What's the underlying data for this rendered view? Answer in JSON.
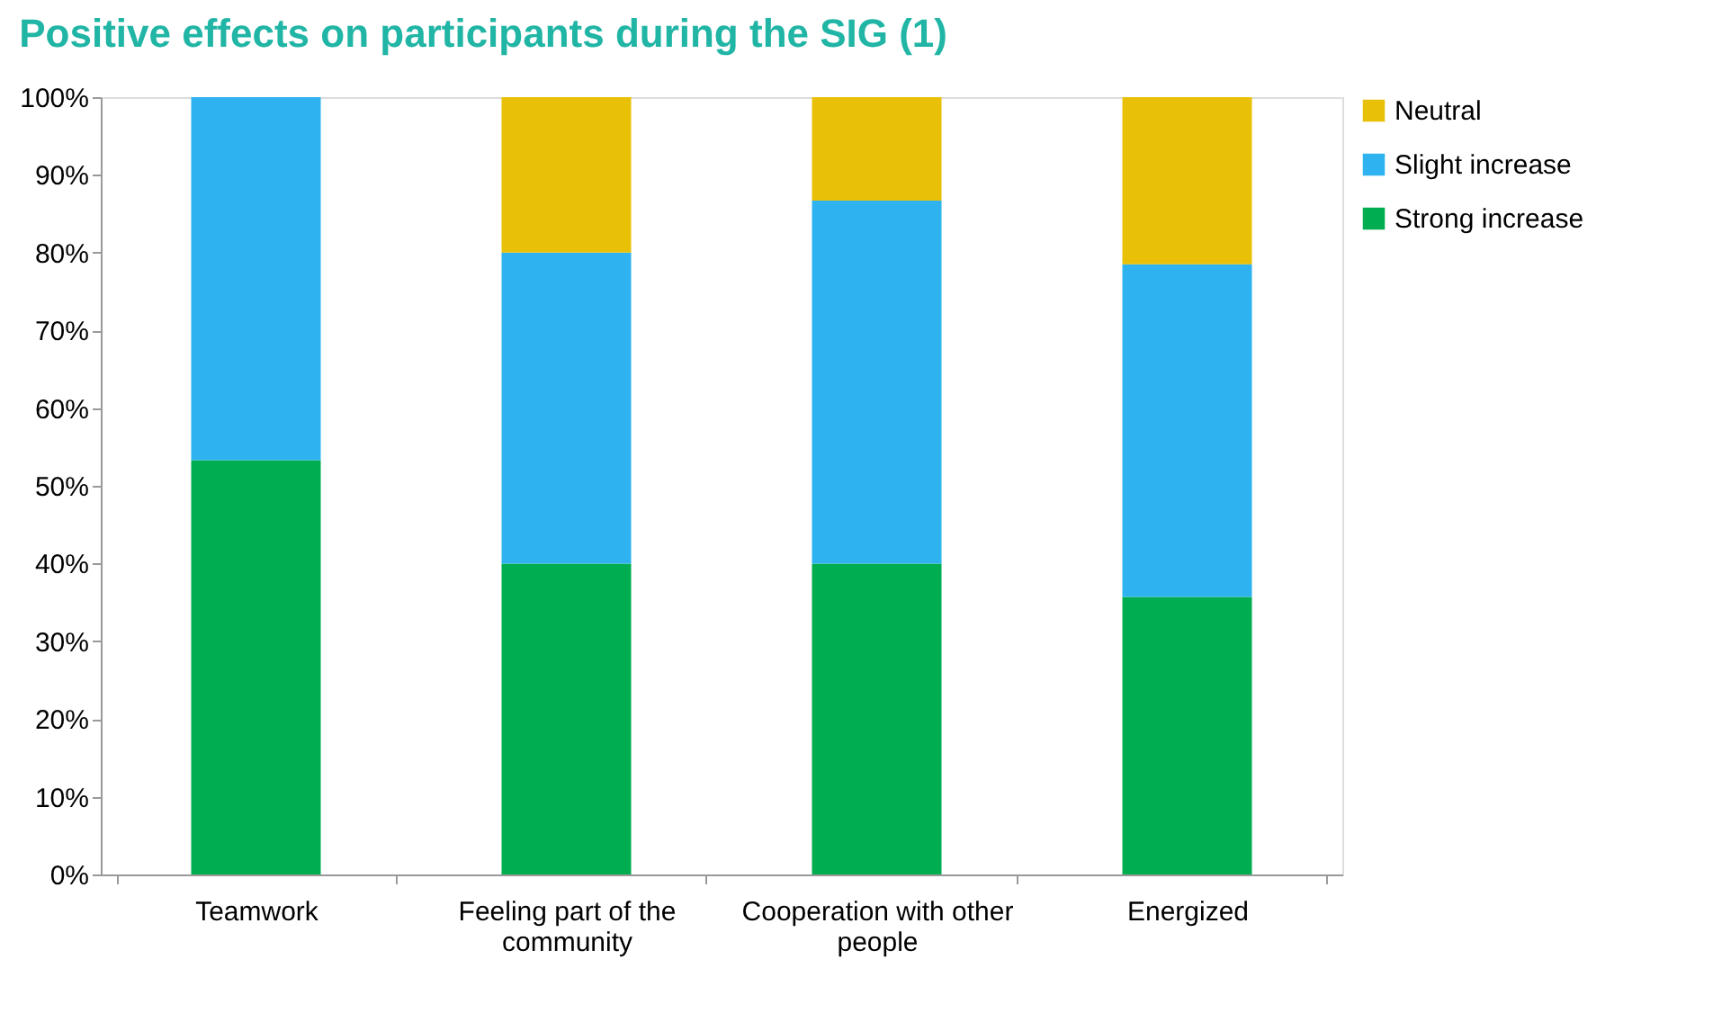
{
  "chart_data": {
    "type": "bar",
    "title": "Positive effects on participants during the SIG (1)",
    "stacked": true,
    "categories": [
      "Teamwork",
      "Feeling part of the community",
      "Cooperation with other people",
      "Energized"
    ],
    "series": [
      {
        "name": "Strong increase",
        "color": "#00ad50",
        "values": [
          53.3,
          40,
          40,
          35.7
        ]
      },
      {
        "name": "Slight increase",
        "color": "#2eb3f0",
        "values": [
          46.7,
          40,
          46.7,
          42.8
        ]
      },
      {
        "name": "Neutral",
        "color": "#e9c008",
        "values": [
          null,
          20,
          13.3,
          21.5
        ]
      }
    ],
    "ylim": [
      0,
      100
    ],
    "yticks": [
      {
        "value": 0,
        "label": "0%"
      },
      {
        "value": 10,
        "label": "10%"
      },
      {
        "value": 20,
        "label": "20%"
      },
      {
        "value": 30,
        "label": "30%"
      },
      {
        "value": 40,
        "label": "40%"
      },
      {
        "value": 50,
        "label": "50%"
      },
      {
        "value": 60,
        "label": "60%"
      },
      {
        "value": 70,
        "label": "70%"
      },
      {
        "value": 80,
        "label": "80%"
      },
      {
        "value": 90,
        "label": "90%"
      },
      {
        "value": 100,
        "label": "100%"
      }
    ],
    "grid": false,
    "legend": "right"
  }
}
